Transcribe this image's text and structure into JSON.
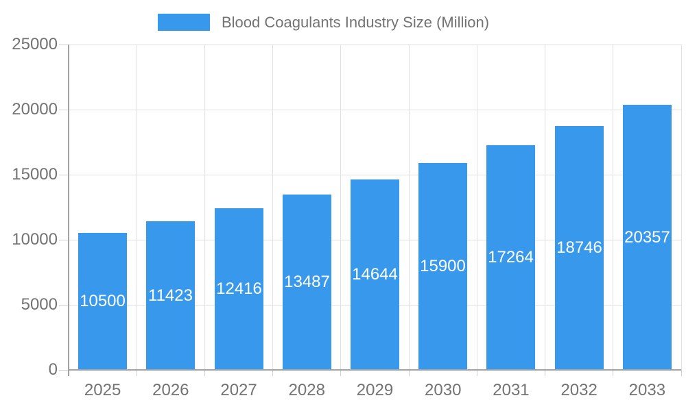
{
  "chart_data": {
    "type": "bar",
    "title": "Blood Coagulants Industry Size (Million)",
    "legend": {
      "position": "top",
      "label": "Blood Coagulants Industry Size (Million)"
    },
    "categories": [
      "2025",
      "2026",
      "2027",
      "2028",
      "2029",
      "2030",
      "2031",
      "2032",
      "2033"
    ],
    "series": [
      {
        "name": "Blood Coagulants Industry Size (Million)",
        "values": [
          10500,
          11423,
          12416,
          13487,
          14644,
          15900,
          17264,
          18746,
          20357
        ]
      }
    ],
    "value_labels_shown": true,
    "xlabel": "",
    "ylabel": "",
    "ylim": [
      0,
      25000
    ],
    "y_ticks": [
      0,
      5000,
      10000,
      15000,
      20000,
      25000
    ],
    "grid": true,
    "colors": {
      "bar": "#3899EC",
      "axis_text": "#737373",
      "value_text": "#FFFFFF",
      "grid_line": "#E0E0E0",
      "tick_line": "#CFCFCF",
      "axis_line": "#A3A3A3",
      "background": "#FFFFFF"
    }
  }
}
